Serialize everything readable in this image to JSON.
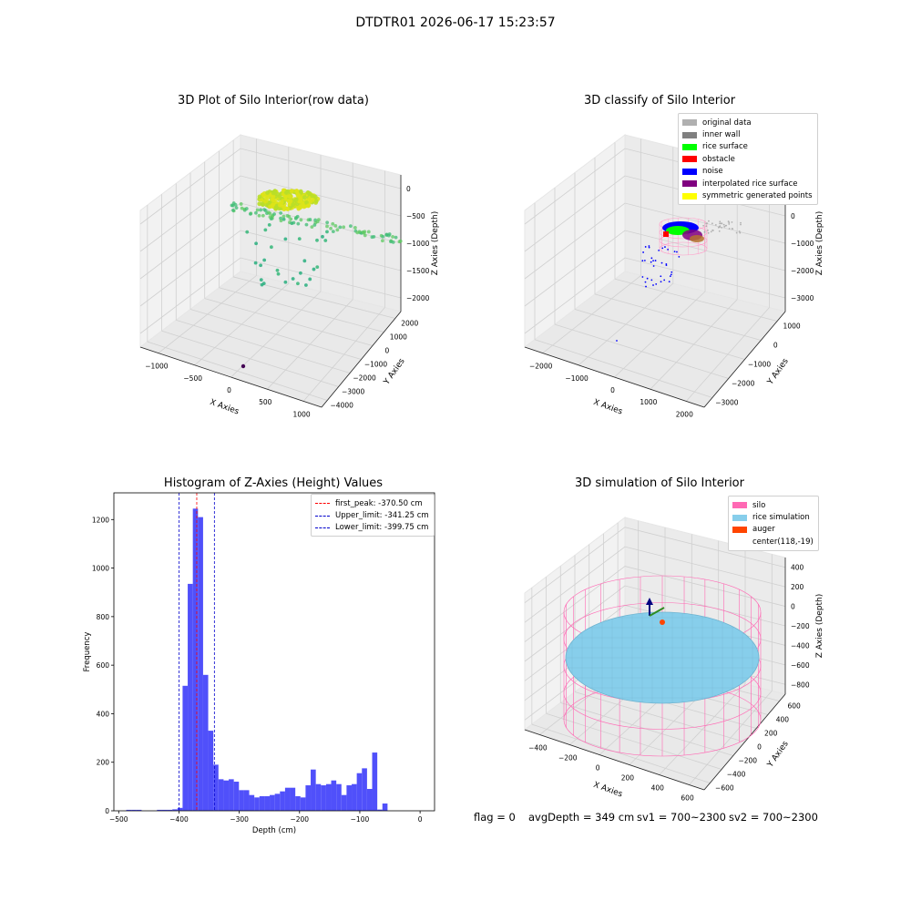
{
  "figure": {
    "suptitle": "DTDTR01 2026-06-17 15:23:57",
    "status": {
      "flag": "flag = 0",
      "avg_depth": "avgDepth = 349 cm",
      "sv1": "sv1 = 700~2300",
      "sv2": "sv2 = 700~2300"
    }
  },
  "chart_data": [
    {
      "type": "scatter3d",
      "title": "3D Plot of Silo Interior(row data)",
      "xlabel": "X Axies",
      "ylabel": "Y Axies",
      "zlabel": "Z Axies (Depth)",
      "x_ticks": [
        "−1000",
        "−500",
        "0",
        "500",
        "1000"
      ],
      "y_ticks": [
        "−4000",
        "−3000",
        "−2000",
        "−1000",
        "0",
        "1000",
        "2000"
      ],
      "z_ticks": [
        "0",
        "−500",
        "−1000",
        "−1500",
        "−2000"
      ],
      "colormap": "viridis"
    },
    {
      "type": "scatter3d",
      "title": "3D classify of Silo Interior",
      "xlabel": "X Axies",
      "ylabel": "Y Axies",
      "zlabel": "Z Axies (Depth)",
      "x_ticks": [
        "−2000",
        "−1000",
        "0",
        "1000",
        "2000"
      ],
      "y_ticks": [
        "−3000",
        "−2000",
        "−1000",
        "0",
        "1000"
      ],
      "z_ticks": [
        "1000",
        "0",
        "−1000",
        "−2000",
        "−3000"
      ],
      "legend": [
        {
          "label": "original data",
          "color": "#b0b0b0"
        },
        {
          "label": "inner wall",
          "color": "#808080"
        },
        {
          "label": "rice surface",
          "color": "#00ff00"
        },
        {
          "label": "obstacle",
          "color": "#ff0000"
        },
        {
          "label": "noise",
          "color": "#0000ff"
        },
        {
          "label": "interpolated rice surface",
          "color": "#800080"
        },
        {
          "label": "symmetric generated points",
          "color": "#ffff00"
        }
      ]
    },
    {
      "type": "bar",
      "title": "Histogram of Z-Axies (Height) Values",
      "xlabel": "Depth (cm)",
      "ylabel": "Frequency",
      "xlim": [
        -508,
        24
      ],
      "ylim": [
        0,
        1310
      ],
      "x_ticks": [
        -500,
        -400,
        -300,
        -200,
        -100,
        0
      ],
      "y_ticks": [
        0,
        200,
        400,
        600,
        800,
        1000,
        1200
      ],
      "bin_width": 8.5,
      "bar_color": "#5050fa",
      "bins": [
        [
          -487.5,
          4
        ],
        [
          -479.0,
          4
        ],
        [
          -470.5,
          4
        ],
        [
          -436.5,
          4
        ],
        [
          -428.0,
          4
        ],
        [
          -419.5,
          4
        ],
        [
          -411.0,
          6
        ],
        [
          -402.5,
          12
        ],
        [
          -394.0,
          515
        ],
        [
          -385.5,
          935
        ],
        [
          -377.0,
          1245
        ],
        [
          -368.5,
          1210
        ],
        [
          -360.0,
          560
        ],
        [
          -351.5,
          330
        ],
        [
          -343.0,
          190
        ],
        [
          -334.5,
          130
        ],
        [
          -326.0,
          125
        ],
        [
          -317.5,
          130
        ],
        [
          -309.0,
          120
        ],
        [
          -300.5,
          85
        ],
        [
          -292.0,
          85
        ],
        [
          -283.5,
          65
        ],
        [
          -275.0,
          55
        ],
        [
          -266.5,
          60
        ],
        [
          -258.0,
          60
        ],
        [
          -249.5,
          65
        ],
        [
          -241.0,
          70
        ],
        [
          -232.5,
          80
        ],
        [
          -224.0,
          95
        ],
        [
          -215.5,
          95
        ],
        [
          -207.0,
          60
        ],
        [
          -198.5,
          55
        ],
        [
          -190.0,
          105
        ],
        [
          -181.5,
          170
        ],
        [
          -173.0,
          110
        ],
        [
          -164.5,
          105
        ],
        [
          -156.0,
          110
        ],
        [
          -147.5,
          125
        ],
        [
          -139.0,
          110
        ],
        [
          -130.5,
          65
        ],
        [
          -122.0,
          105
        ],
        [
          -113.5,
          110
        ],
        [
          -105.0,
          155
        ],
        [
          -96.5,
          175
        ],
        [
          -88.0,
          90
        ],
        [
          -79.5,
          240
        ],
        [
          -71.0,
          5
        ],
        [
          -62.5,
          30
        ]
      ],
      "vlines": [
        {
          "label": "first_peak: -370.50 cm",
          "x": -370.5,
          "color": "#ff0000"
        },
        {
          "label": "Upper_limit: -341.25 cm",
          "x": -341.25,
          "color": "#0000cc"
        },
        {
          "label": "Lower_limit: -399.75 cm",
          "x": -399.75,
          "color": "#0000cc"
        }
      ]
    },
    {
      "type": "surface3d",
      "title": "3D simulation of Silo Interior",
      "xlabel": "X Axies",
      "ylabel": "Y Axies",
      "zlabel": "Z Axies (Depth)",
      "x_ticks": [
        "−400",
        "−200",
        "0",
        "200",
        "400",
        "600"
      ],
      "y_ticks": [
        "−600",
        "−400",
        "−200",
        "0",
        "200",
        "400",
        "600"
      ],
      "z_ticks": [
        "400",
        "200",
        "0",
        "−200",
        "−400",
        "−600",
        "−800"
      ],
      "legend": [
        {
          "label": "silo",
          "color": "#ff69b4"
        },
        {
          "label": "rice simulation",
          "color": "#87ceeb"
        },
        {
          "label": "auger",
          "color": "#ff4500"
        },
        {
          "label": "center(118,-19)",
          "color": ""
        }
      ]
    }
  ]
}
